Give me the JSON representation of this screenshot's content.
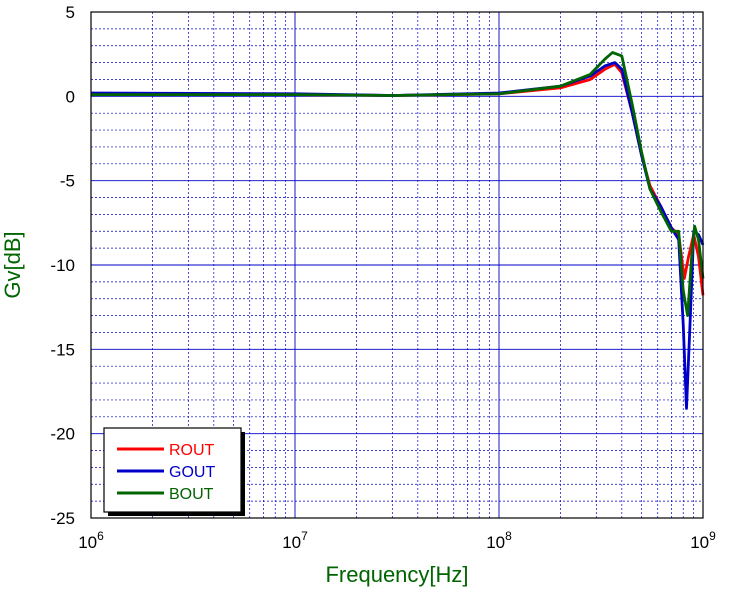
{
  "chart_data": {
    "type": "line",
    "title": "",
    "xlabel": "Frequency[Hz]",
    "ylabel": "Gv[dB]",
    "xscale": "log",
    "xlim": [
      1000000,
      1000000000
    ],
    "ylim": [
      -25,
      5
    ],
    "x_ticks": [
      {
        "value": 1000000,
        "base": "10",
        "exp": "6"
      },
      {
        "value": 10000000,
        "base": "10",
        "exp": "7"
      },
      {
        "value": 100000000,
        "base": "10",
        "exp": "8"
      },
      {
        "value": 1000000000,
        "base": "10",
        "exp": "9"
      }
    ],
    "y_ticks": [
      "5",
      "0",
      "-5",
      "-10",
      "-15",
      "-20",
      "-25"
    ],
    "grid": true,
    "legend_position": "bottom-left",
    "series": [
      {
        "name": "ROUT",
        "color": "#ff0000",
        "points": [
          [
            1000000,
            0.1
          ],
          [
            10000000,
            0.1
          ],
          [
            30000000,
            0.05
          ],
          [
            100000000,
            0.15
          ],
          [
            200000000,
            0.5
          ],
          [
            280000000,
            1.0
          ],
          [
            330000000,
            1.6
          ],
          [
            370000000,
            1.9
          ],
          [
            400000000,
            1.4
          ],
          [
            450000000,
            -1.0
          ],
          [
            500000000,
            -3.5
          ],
          [
            550000000,
            -5.3
          ],
          [
            620000000,
            -6.5
          ],
          [
            700000000,
            -7.8
          ],
          [
            760000000,
            -8.2
          ],
          [
            810000000,
            -10.8
          ],
          [
            850000000,
            -9.5
          ],
          [
            900000000,
            -8.2
          ],
          [
            950000000,
            -9.5
          ],
          [
            1000000000,
            -11.8
          ]
        ]
      },
      {
        "name": "GOUT",
        "color": "#0000c8",
        "points": [
          [
            1000000,
            0.2
          ],
          [
            10000000,
            0.15
          ],
          [
            30000000,
            0.05
          ],
          [
            100000000,
            0.2
          ],
          [
            200000000,
            0.6
          ],
          [
            280000000,
            1.2
          ],
          [
            330000000,
            1.8
          ],
          [
            370000000,
            2.0
          ],
          [
            400000000,
            1.6
          ],
          [
            450000000,
            -1.0
          ],
          [
            500000000,
            -3.5
          ],
          [
            550000000,
            -5.5
          ],
          [
            620000000,
            -6.5
          ],
          [
            700000000,
            -7.8
          ],
          [
            760000000,
            -8.5
          ],
          [
            800000000,
            -13.5
          ],
          [
            830000000,
            -18.5
          ],
          [
            870000000,
            -12.5
          ],
          [
            900000000,
            -8.0
          ],
          [
            950000000,
            -8.2
          ],
          [
            1000000000,
            -8.8
          ]
        ]
      },
      {
        "name": "BOUT",
        "color": "#006400",
        "points": [
          [
            1000000,
            0.1
          ],
          [
            10000000,
            0.1
          ],
          [
            30000000,
            0.05
          ],
          [
            100000000,
            0.15
          ],
          [
            200000000,
            0.6
          ],
          [
            280000000,
            1.3
          ],
          [
            330000000,
            2.2
          ],
          [
            360000000,
            2.6
          ],
          [
            400000000,
            2.4
          ],
          [
            450000000,
            -0.5
          ],
          [
            500000000,
            -3.3
          ],
          [
            550000000,
            -5.5
          ],
          [
            620000000,
            -6.8
          ],
          [
            700000000,
            -8.0
          ],
          [
            760000000,
            -8.0
          ],
          [
            800000000,
            -11.5
          ],
          [
            840000000,
            -13.0
          ],
          [
            880000000,
            -9.5
          ],
          [
            910000000,
            -7.7
          ],
          [
            950000000,
            -8.5
          ],
          [
            1000000000,
            -10.8
          ]
        ]
      }
    ]
  }
}
